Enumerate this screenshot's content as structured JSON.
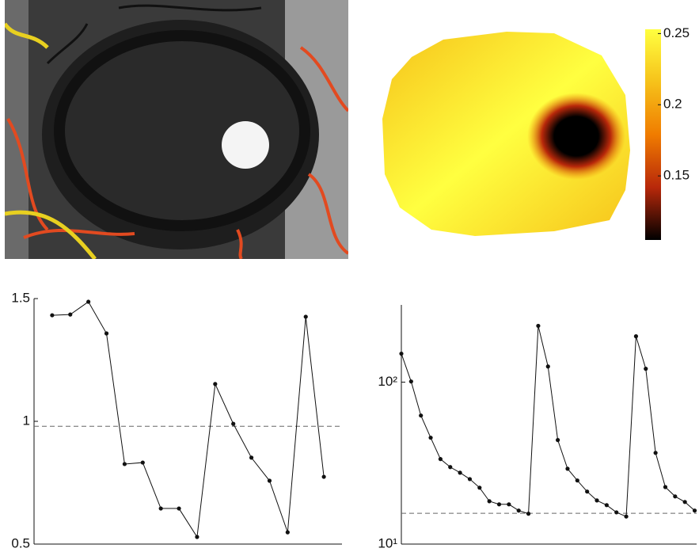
{
  "chart_data": [
    {
      "type": "heatmap",
      "clim": [
        0.105,
        0.253
      ],
      "cticks": [
        0.15,
        0.2,
        0.25
      ],
      "colormap": [
        "#000000",
        "#b8280a",
        "#f07c00",
        "#f6c21a",
        "#ffff40"
      ]
    },
    {
      "type": "line",
      "color": "#111111",
      "x": [
        1,
        2,
        3,
        4,
        5,
        6,
        7,
        8,
        9,
        10,
        11,
        12,
        13,
        14,
        15,
        16
      ],
      "values": [
        1.432,
        1.435,
        1.487,
        1.358,
        0.826,
        0.832,
        0.645,
        0.645,
        0.529,
        1.152,
        0.99,
        0.852,
        0.758,
        0.548,
        1.426,
        0.774
      ],
      "xlim": [
        0,
        17
      ],
      "ylim": [
        0.5,
        1.5
      ],
      "yticks": [
        0.5,
        1,
        1.5
      ],
      "reference_line": 0.98
    },
    {
      "type": "line",
      "color": "#111111",
      "log_y": true,
      "x": [
        1,
        2,
        3,
        4,
        5,
        6,
        7,
        8,
        9,
        10,
        11,
        12,
        13,
        14,
        15,
        16,
        17,
        18,
        19,
        20,
        21,
        22,
        23,
        24,
        25,
        26,
        27,
        28,
        29,
        30,
        31
      ],
      "values": [
        150,
        101,
        62.2,
        45.4,
        33.5,
        29.9,
        27.6,
        25.2,
        22.3,
        18.4,
        17.6,
        17.6,
        16.1,
        15.4,
        222.8,
        125,
        43.9,
        29.2,
        24.7,
        21.1,
        18.6,
        17.4,
        15.7,
        14.8,
        192,
        121,
        36.6,
        22.5,
        19.7,
        18.2,
        16.1
      ],
      "xlim": [
        1,
        31.2
      ],
      "ylim": [
        10,
        300
      ],
      "yticks": [
        {
          "value": 10,
          "label": "10¹"
        },
        {
          "value": 100,
          "label": "10²"
        }
      ],
      "reference_line": 15.5
    }
  ]
}
